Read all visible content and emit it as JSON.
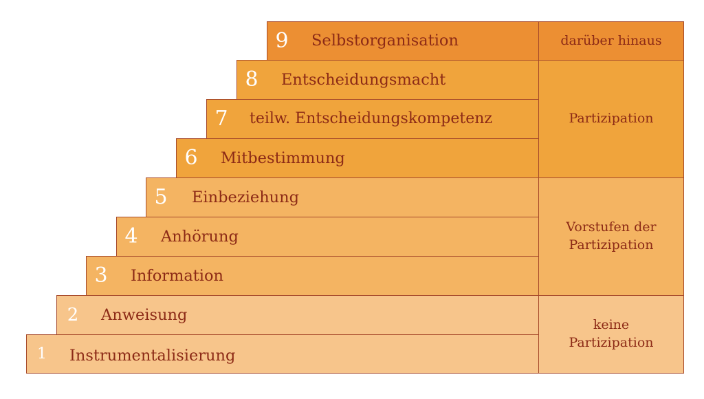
{
  "diagram": {
    "steps": [
      {
        "number": "1",
        "label": "Instrumentalisierung",
        "color": "#f7c58b"
      },
      {
        "number": "2",
        "label": "Anweisung",
        "color": "#f7c58b"
      },
      {
        "number": "3",
        "label": "Information",
        "color": "#f4b462"
      },
      {
        "number": "4",
        "label": "Anhörung",
        "color": "#f4b462"
      },
      {
        "number": "5",
        "label": "Einbeziehung",
        "color": "#f4b462"
      },
      {
        "number": "6",
        "label": "Mitbestimmung",
        "color": "#f0a43c"
      },
      {
        "number": "7",
        "label": "teilw. Entscheidungskompetenz",
        "color": "#f0a43c"
      },
      {
        "number": "8",
        "label": "Entscheidungsmacht",
        "color": "#f0a43c"
      },
      {
        "number": "9",
        "label": "Selbstorganisation",
        "color": "#ec8f33"
      }
    ],
    "categories": [
      {
        "label": "darüber hinaus",
        "color": "#ec8f33"
      },
      {
        "label": "Partizipation",
        "color": "#f0a43c"
      },
      {
        "label": "Vorstufen der\nPartizipation",
        "color": "#f4b462"
      },
      {
        "label": "keine\nPartizipation",
        "color": "#f7c58b"
      }
    ],
    "border_color": "#a6492a",
    "text_color": "#8c2a16"
  }
}
